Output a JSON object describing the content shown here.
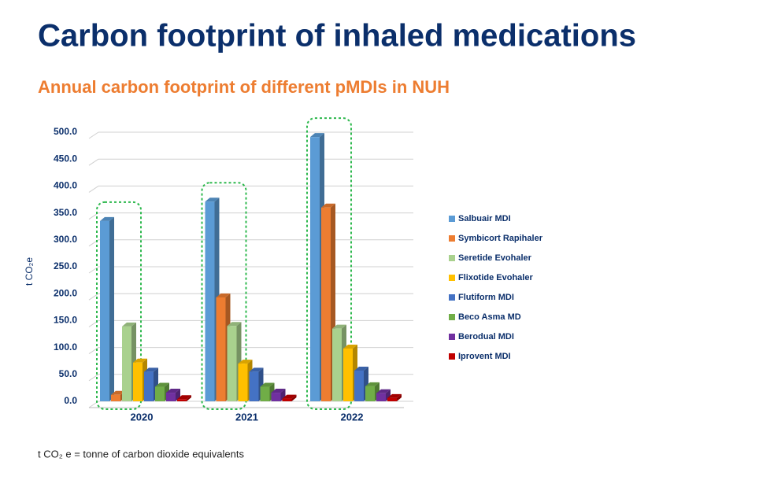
{
  "title": "Carbon footprint of inhaled medications",
  "subtitle": "Annual carbon footprint of different pMDIs in NUH",
  "footnote": "t CO₂ e = tonne of carbon dioxide equivalents",
  "chart_data": {
    "type": "bar3d",
    "ylabel": "t CO₂e",
    "categories": [
      "2020",
      "2021",
      "2022"
    ],
    "series": [
      {
        "name": "Salbuair MDI",
        "color": "#5b9bd5",
        "values": [
          335,
          371,
          491
        ]
      },
      {
        "name": "Symbicort Rapihaler",
        "color": "#ed7d31",
        "values": [
          12,
          193,
          360
        ]
      },
      {
        "name": "Seretide Evohaler",
        "color": "#a9d18e",
        "values": [
          139,
          140,
          135
        ]
      },
      {
        "name": "Flixotide Evohaler",
        "color": "#ffc000",
        "values": [
          72,
          70,
          98
        ]
      },
      {
        "name": "Flutiform MDI",
        "color": "#4472c4",
        "values": [
          55,
          55,
          57
        ]
      },
      {
        "name": "Beco Asma MD",
        "color": "#70ad47",
        "values": [
          27,
          27,
          28
        ]
      },
      {
        "name": "Berodual MDI",
        "color": "#7030a0",
        "values": [
          16,
          16,
          15
        ]
      },
      {
        "name": "Iprovent MDI",
        "color": "#c00000",
        "values": [
          4,
          5,
          6
        ]
      }
    ],
    "ylim": [
      0,
      500
    ],
    "yticks": [
      {
        "value": 0,
        "label": "0.0"
      },
      {
        "value": 50,
        "label": "50.0"
      },
      {
        "value": 100,
        "label": "100.0"
      },
      {
        "value": 150,
        "label": "150.0"
      },
      {
        "value": 200,
        "label": "200.0"
      },
      {
        "value": 250,
        "label": "250.0"
      },
      {
        "value": 300,
        "label": "300.0"
      },
      {
        "value": 350,
        "label": "350.0"
      },
      {
        "value": 400,
        "label": "400.0"
      },
      {
        "value": 450,
        "label": "450.0"
      },
      {
        "value": 500,
        "label": "500.0"
      }
    ],
    "grid": true,
    "legend": "right"
  }
}
